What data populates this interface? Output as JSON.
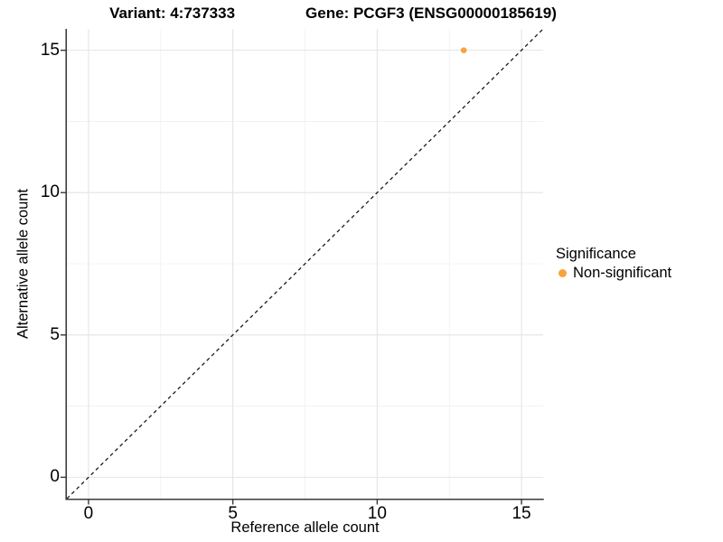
{
  "title": {
    "variant": "Variant: 4:737333",
    "gene": "Gene: PCGF3 (ENSG00000185619)"
  },
  "axes": {
    "x_label": "Reference allele count",
    "y_label": "Alternative allele count"
  },
  "legend": {
    "title": "Significance",
    "items": [
      {
        "label": "Non-significant",
        "color": "#FAA33A"
      }
    ]
  },
  "colors": {
    "point_orange": "#FAA33A",
    "axis_line": "#3A3A3A",
    "grid_major": "#E4E4E4",
    "grid_minor": "#F0F0F0",
    "reference_line": "#1A1A1A",
    "background": "#FFFFFF"
  },
  "chart_data": {
    "type": "scatter",
    "title": "Variant: 4:737333   Gene: PCGF3 (ENSG00000185619)",
    "xlabel": "Reference allele count",
    "ylabel": "Alternative allele count",
    "xlim": [
      -0.75,
      15.75
    ],
    "ylim": [
      -0.75,
      15.75
    ],
    "x_ticks": [
      0,
      5,
      10,
      15
    ],
    "y_ticks": [
      0,
      5,
      10,
      15
    ],
    "x_minor_ticks": [
      2.5,
      7.5,
      12.5
    ],
    "y_minor_ticks": [
      2.5,
      7.5,
      12.5
    ],
    "grid": true,
    "legend_position": "right",
    "series": [
      {
        "name": "Non-significant",
        "color": "#FAA33A",
        "points": [
          {
            "x": 13,
            "y": 15
          }
        ]
      }
    ],
    "reference_line": {
      "type": "identity-diagonal",
      "style": "dashed",
      "color": "#1A1A1A"
    }
  }
}
